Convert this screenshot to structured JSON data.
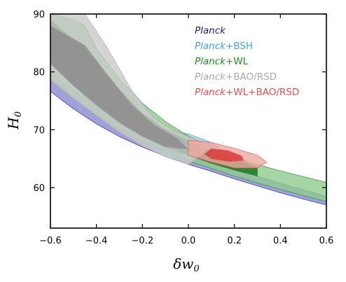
{
  "chart_data": {
    "type": "contour",
    "xlabel": "δw",
    "xlabel_sub": "0",
    "ylabel": "H",
    "ylabel_sub": "0",
    "xlim": [
      -0.6,
      0.6
    ],
    "ylim": [
      53,
      90
    ],
    "xticks": [
      -0.6,
      -0.4,
      -0.2,
      0.0,
      0.2,
      0.4,
      0.6
    ],
    "xtick_labels": [
      "−0.6",
      "−0.4",
      "−0.2",
      "0.0",
      "0.2",
      "0.4",
      "0.6"
    ],
    "yticks": [
      60,
      70,
      80,
      90
    ],
    "ytick_labels": [
      "60",
      "70",
      "80",
      "90"
    ],
    "legend_position": "top-right",
    "series": [
      {
        "name_italic": "Planck",
        "name_rest": "",
        "color": "#1f1f7a",
        "fill_outer": "#8a8ad0",
        "fill_inner": "#5b5bb8",
        "outer": [
          [
            -0.6,
            80
          ],
          [
            -0.5,
            76.8
          ],
          [
            -0.4,
            74.0
          ],
          [
            -0.3,
            71.5
          ],
          [
            -0.2,
            69.4
          ],
          [
            -0.1,
            67.6
          ],
          [
            0.0,
            66.0
          ],
          [
            0.1,
            64.6
          ],
          [
            0.2,
            63.3
          ],
          [
            0.3,
            62.0
          ],
          [
            0.4,
            60.7
          ],
          [
            0.5,
            59.6
          ],
          [
            0.6,
            58.5
          ],
          [
            0.6,
            57.0
          ],
          [
            0.5,
            58.0
          ],
          [
            0.4,
            59.1
          ],
          [
            0.3,
            60.3
          ],
          [
            0.2,
            61.5
          ],
          [
            0.1,
            62.8
          ],
          [
            0.0,
            64.0
          ],
          [
            -0.1,
            65.4
          ],
          [
            -0.2,
            67.0
          ],
          [
            -0.3,
            68.8
          ],
          [
            -0.4,
            71.0
          ],
          [
            -0.5,
            73.6
          ],
          [
            -0.6,
            76.6
          ]
        ],
        "inner": []
      },
      {
        "name_italic": "Planck",
        "name_rest": "+BSH",
        "color": "#4a9ee8",
        "fill_outer": "#9fcbe8",
        "fill_inner": "#2d6fd6",
        "outer": [
          [
            -0.17,
            69.5
          ],
          [
            -0.1,
            70.0
          ],
          [
            0.0,
            69.3
          ],
          [
            0.1,
            67.8
          ],
          [
            0.16,
            66.2
          ],
          [
            0.12,
            64.9
          ],
          [
            0.0,
            64.5
          ],
          [
            -0.1,
            65.3
          ],
          [
            -0.17,
            67.2
          ]
        ],
        "inner": [
          [
            -0.11,
            68.6
          ],
          [
            -0.03,
            68.8
          ],
          [
            0.06,
            67.6
          ],
          [
            0.1,
            66.3
          ],
          [
            0.03,
            65.5
          ],
          [
            -0.07,
            65.8
          ],
          [
            -0.12,
            67.0
          ]
        ]
      },
      {
        "name_italic": "Planck",
        "name_rest": "+WL",
        "color": "#2a8a2a",
        "fill_outer": "#8fc98f",
        "fill_inner": "#237a23",
        "outer": [
          [
            -0.6,
            90
          ],
          [
            -0.5,
            89
          ],
          [
            -0.45,
            88
          ],
          [
            -0.4,
            84
          ],
          [
            -0.3,
            78.8
          ],
          [
            -0.2,
            74.6
          ],
          [
            -0.1,
            71.4
          ],
          [
            0.0,
            68.9
          ],
          [
            0.1,
            66.9
          ],
          [
            0.2,
            65.3
          ],
          [
            0.3,
            64.0
          ],
          [
            0.4,
            62.9
          ],
          [
            0.5,
            61.9
          ],
          [
            0.6,
            60.9
          ],
          [
            0.6,
            57.6
          ],
          [
            0.5,
            58.6
          ],
          [
            0.4,
            59.7
          ],
          [
            0.3,
            60.8
          ],
          [
            0.2,
            62.0
          ],
          [
            0.1,
            63.3
          ],
          [
            0.0,
            64.6
          ],
          [
            -0.1,
            66.1
          ],
          [
            -0.2,
            67.9
          ],
          [
            -0.3,
            70.0
          ],
          [
            -0.4,
            72.6
          ],
          [
            -0.5,
            75.6
          ],
          [
            -0.6,
            78.8
          ]
        ],
        "inner": [
          [
            -0.6,
            89
          ],
          [
            -0.5,
            85.6
          ],
          [
            -0.4,
            81.2
          ],
          [
            -0.3,
            77.0
          ],
          [
            -0.2,
            72.8
          ],
          [
            -0.1,
            70.0
          ],
          [
            0.0,
            68.0
          ],
          [
            0.1,
            66.4
          ],
          [
            0.2,
            65.0
          ],
          [
            0.3,
            63.6
          ],
          [
            0.3,
            62.0
          ],
          [
            0.2,
            63.0
          ],
          [
            0.1,
            64.2
          ],
          [
            0.0,
            65.6
          ],
          [
            -0.1,
            67.2
          ],
          [
            -0.2,
            69.2
          ],
          [
            -0.3,
            71.6
          ],
          [
            -0.4,
            74.6
          ],
          [
            -0.5,
            77.8
          ],
          [
            -0.6,
            81.8
          ]
        ]
      },
      {
        "name_italic": "Planck",
        "name_rest": "+BAO/RSD",
        "color": "#aaaaaa",
        "fill_outer": "#c9c9c9",
        "fill_inner": "#8f8f8f",
        "outer": [
          [
            -0.6,
            90
          ],
          [
            -0.45,
            90
          ],
          [
            -0.35,
            84
          ],
          [
            -0.25,
            77
          ],
          [
            -0.15,
            72
          ],
          [
            -0.05,
            69.6
          ],
          [
            0.05,
            68.0
          ],
          [
            0.1,
            67.0
          ],
          [
            0.0,
            64.0
          ],
          [
            -0.1,
            65.3
          ],
          [
            -0.2,
            67.2
          ],
          [
            -0.3,
            69.6
          ],
          [
            -0.4,
            72.4
          ],
          [
            -0.5,
            75.4
          ],
          [
            -0.6,
            78.6
          ]
        ],
        "inner": [
          [
            -0.6,
            88
          ],
          [
            -0.45,
            84.6
          ],
          [
            -0.35,
            79.4
          ],
          [
            -0.25,
            74.5
          ],
          [
            -0.15,
            70.9
          ],
          [
            -0.05,
            68.6
          ],
          [
            0.0,
            66.6
          ],
          [
            -0.1,
            67.0
          ],
          [
            -0.2,
            68.8
          ],
          [
            -0.3,
            71.2
          ],
          [
            -0.4,
            74.2
          ],
          [
            -0.5,
            77.6
          ],
          [
            -0.6,
            81.4
          ]
        ]
      },
      {
        "name_italic": "Planck",
        "name_rest": "+WL+BAO/RSD",
        "color": "#e05050",
        "fill_outer": "#f0a8a0",
        "fill_inner": "#d94040",
        "outer": [
          [
            0.0,
            68.2
          ],
          [
            0.1,
            67.8
          ],
          [
            0.2,
            66.8
          ],
          [
            0.3,
            65.6
          ],
          [
            0.34,
            64.4
          ],
          [
            0.3,
            63.4
          ],
          [
            0.2,
            63.4
          ],
          [
            0.1,
            64.4
          ],
          [
            0.0,
            65.6
          ]
        ],
        "inner": [
          [
            0.1,
            66.7
          ],
          [
            0.17,
            66.4
          ],
          [
            0.23,
            65.5
          ],
          [
            0.24,
            64.7
          ],
          [
            0.18,
            64.5
          ],
          [
            0.1,
            65.0
          ],
          [
            0.07,
            65.8
          ]
        ]
      }
    ]
  }
}
